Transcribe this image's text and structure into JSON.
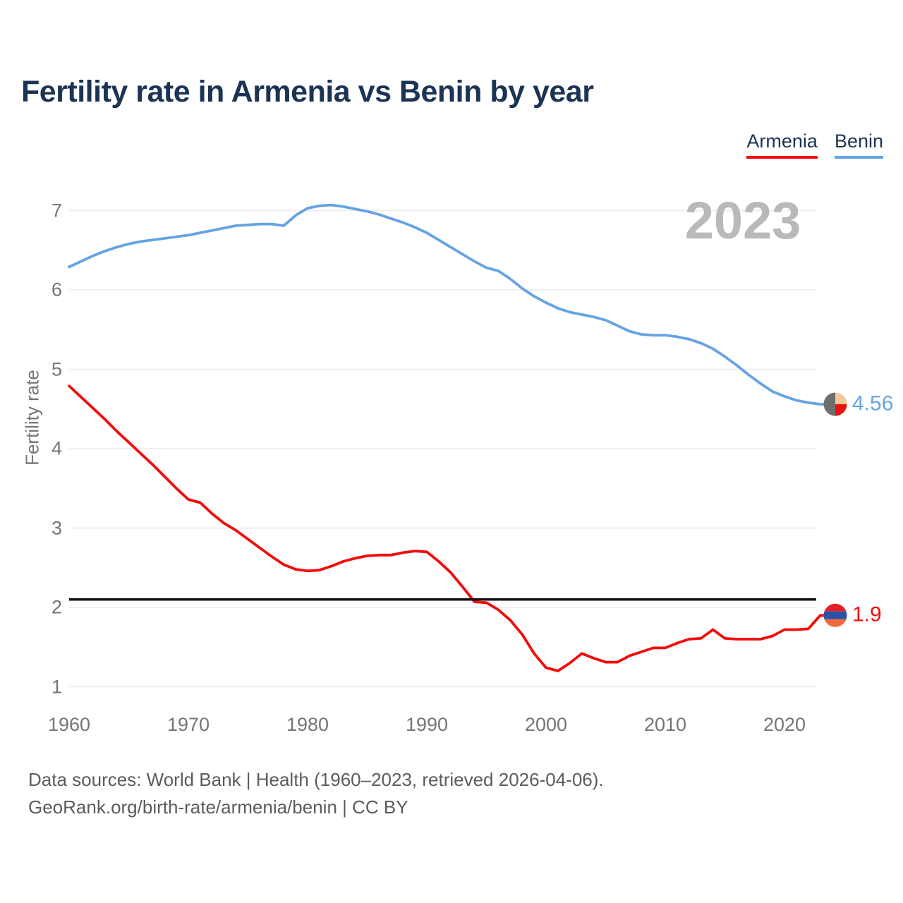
{
  "title": "Fertility rate in Armenia vs Benin by year",
  "watermark": "2023",
  "y_axis_title": "Fertility rate",
  "legend": [
    {
      "label": "Armenia",
      "color": "#f40b0b"
    },
    {
      "label": "Benin",
      "color": "#66a3e3"
    }
  ],
  "end_labels": {
    "benin": "4.56",
    "armenia": "1.9"
  },
  "footer": {
    "line1": "Data sources: World Bank | Health (1960–2023, retrieved 2026-04-06).",
    "line2": "GeoRank.org/birth-rate/armenia/benin | CC BY"
  },
  "colors": {
    "title": "#1c3454",
    "armenia_line": "#f40b0b",
    "benin_line": "#66a3e3",
    "axis_text": "#757575",
    "gridline": "#ebebeb",
    "threshold": "#111111",
    "watermark": "#b9b9b9"
  },
  "flags": {
    "benin_dot": {
      "left": "#6e6e6e",
      "top_right": "#f6c79b",
      "bottom_right": "#e8130f"
    },
    "armenia_dot": {
      "top": "#e32125",
      "middle": "#2b52a5",
      "bottom": "#f4683c"
    }
  },
  "chart_data": {
    "type": "line",
    "title": "Fertility rate in Armenia vs Benin by year",
    "xlabel": "",
    "ylabel": "Fertility rate",
    "x_ticks": [
      1960,
      1970,
      1980,
      1990,
      2000,
      2010,
      2020
    ],
    "y_ticks": [
      1,
      2,
      3,
      4,
      5,
      6,
      7
    ],
    "ylim": [
      1,
      7.2
    ],
    "xlim": [
      1960,
      2023
    ],
    "grid": true,
    "legend_position": "top-right",
    "threshold": {
      "value": 2.1,
      "label": ""
    },
    "x": [
      1960,
      1961,
      1962,
      1963,
      1964,
      1965,
      1966,
      1967,
      1968,
      1969,
      1970,
      1971,
      1972,
      1973,
      1974,
      1975,
      1976,
      1977,
      1978,
      1979,
      1980,
      1981,
      1982,
      1983,
      1984,
      1985,
      1986,
      1987,
      1988,
      1989,
      1990,
      1991,
      1992,
      1993,
      1994,
      1995,
      1996,
      1997,
      1998,
      1999,
      2000,
      2001,
      2002,
      2003,
      2004,
      2005,
      2006,
      2007,
      2008,
      2009,
      2010,
      2011,
      2012,
      2013,
      2014,
      2015,
      2016,
      2017,
      2018,
      2019,
      2020,
      2021,
      2022,
      2023
    ],
    "series": [
      {
        "name": "Benin",
        "color": "#66a3e3",
        "end_value": 4.56,
        "values": [
          6.29,
          6.36,
          6.43,
          6.49,
          6.54,
          6.58,
          6.61,
          6.63,
          6.65,
          6.67,
          6.69,
          6.72,
          6.75,
          6.78,
          6.81,
          6.82,
          6.83,
          6.83,
          6.81,
          6.94,
          7.03,
          7.06,
          7.07,
          7.05,
          7.02,
          6.99,
          6.95,
          6.9,
          6.85,
          6.79,
          6.72,
          6.63,
          6.54,
          6.45,
          6.36,
          6.28,
          6.24,
          6.14,
          6.02,
          5.92,
          5.84,
          5.77,
          5.72,
          5.69,
          5.66,
          5.62,
          5.55,
          5.48,
          5.44,
          5.43,
          5.43,
          5.41,
          5.38,
          5.33,
          5.26,
          5.16,
          5.05,
          4.93,
          4.82,
          4.72,
          4.66,
          4.61,
          4.58,
          4.56
        ]
      },
      {
        "name": "Armenia",
        "color": "#f40b0b",
        "end_value": 1.9,
        "values": [
          4.79,
          4.65,
          4.51,
          4.37,
          4.22,
          4.08,
          3.94,
          3.8,
          3.65,
          3.5,
          3.36,
          3.32,
          3.18,
          3.06,
          2.97,
          2.86,
          2.75,
          2.64,
          2.54,
          2.48,
          2.46,
          2.47,
          2.52,
          2.58,
          2.62,
          2.65,
          2.66,
          2.66,
          2.69,
          2.71,
          2.7,
          2.58,
          2.44,
          2.26,
          2.07,
          2.06,
          1.97,
          1.84,
          1.66,
          1.42,
          1.24,
          1.2,
          1.3,
          1.42,
          1.36,
          1.31,
          1.31,
          1.39,
          1.44,
          1.49,
          1.49,
          1.55,
          1.6,
          1.61,
          1.72,
          1.61,
          1.6,
          1.6,
          1.6,
          1.64,
          1.72,
          1.72,
          1.73,
          1.9
        ]
      }
    ]
  }
}
